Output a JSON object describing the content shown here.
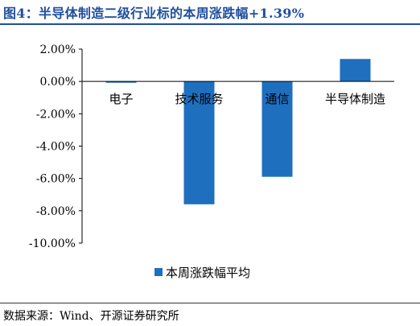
{
  "header": {
    "title": "图4：半导体制造二级行业标的本周涨跌幅+1.39%"
  },
  "footer": {
    "source": "数据来源：Wind、开源证券研究所"
  },
  "chart_data": {
    "type": "bar",
    "categories": [
      "电子",
      "技术服务",
      "通信",
      "半导体制造"
    ],
    "series": [
      {
        "name": "本周涨跌幅平均",
        "values": [
          -0.08,
          -7.6,
          -5.9,
          1.39
        ]
      }
    ],
    "ylim": [
      -10,
      2
    ],
    "yticks": [
      2,
      0,
      -2,
      -4,
      -6,
      -8,
      -10
    ],
    "ytick_labels": [
      "2.00%",
      "0.00%",
      "-2.00%",
      "-4.00%",
      "-6.00%",
      "-8.00%",
      "-10.00%"
    ],
    "bar_color": "#1f6fbf",
    "legend_position": "bottom",
    "grid": false
  }
}
